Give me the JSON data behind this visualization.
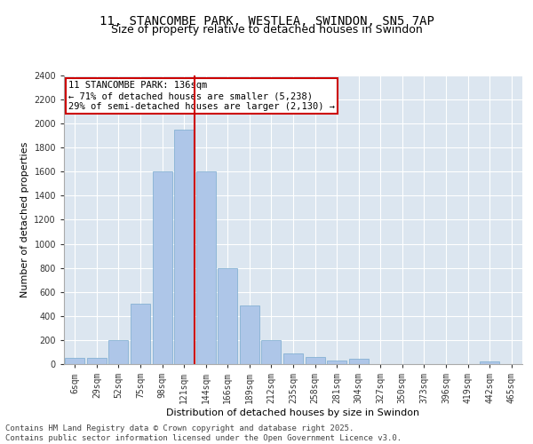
{
  "title1": "11, STANCOMBE PARK, WESTLEA, SWINDON, SN5 7AP",
  "title2": "Size of property relative to detached houses in Swindon",
  "xlabel": "Distribution of detached houses by size in Swindon",
  "ylabel": "Number of detached properties",
  "categories": [
    "6sqm",
    "29sqm",
    "52sqm",
    "75sqm",
    "98sqm",
    "121sqm",
    "144sqm",
    "166sqm",
    "189sqm",
    "212sqm",
    "235sqm",
    "258sqm",
    "281sqm",
    "304sqm",
    "327sqm",
    "350sqm",
    "373sqm",
    "396sqm",
    "419sqm",
    "442sqm",
    "465sqm"
  ],
  "values": [
    50,
    50,
    200,
    500,
    1600,
    1950,
    1600,
    800,
    490,
    200,
    90,
    60,
    30,
    45,
    0,
    0,
    0,
    0,
    0,
    20,
    0
  ],
  "bar_color": "#aec6e8",
  "bar_edgecolor": "#7aabcf",
  "vline_color": "#cc0000",
  "annotation_text": "11 STANCOMBE PARK: 136sqm\n← 71% of detached houses are smaller (5,238)\n29% of semi-detached houses are larger (2,130) →",
  "annotation_box_edgecolor": "#cc0000",
  "background_color": "#dce6f0",
  "ylim": [
    0,
    2400
  ],
  "yticks": [
    0,
    200,
    400,
    600,
    800,
    1000,
    1200,
    1400,
    1600,
    1800,
    2000,
    2200,
    2400
  ],
  "footer": "Contains HM Land Registry data © Crown copyright and database right 2025.\nContains public sector information licensed under the Open Government Licence v3.0.",
  "title_fontsize": 10,
  "subtitle_fontsize": 9,
  "axis_label_fontsize": 8,
  "tick_fontsize": 7,
  "footer_fontsize": 6.5,
  "annotation_fontsize": 7.5
}
